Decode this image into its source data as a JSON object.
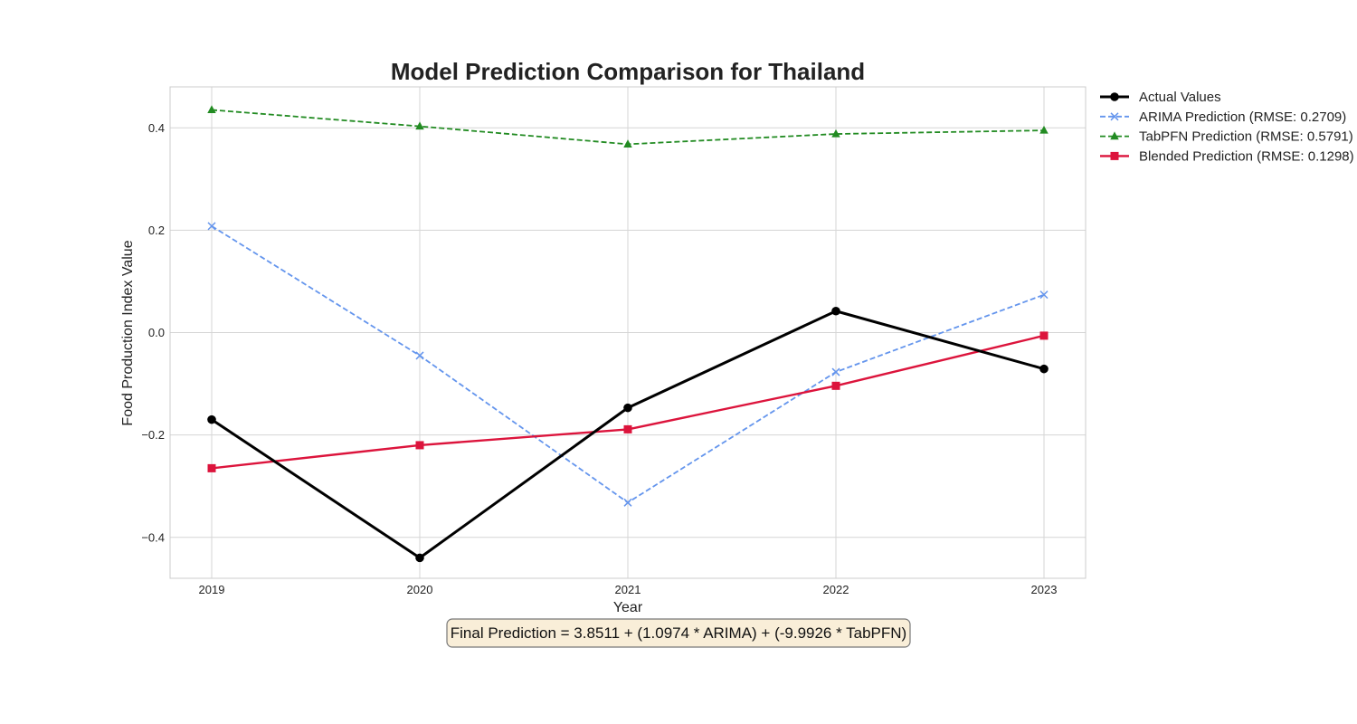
{
  "chart_data": {
    "type": "line",
    "title": "Model Prediction Comparison for Thailand",
    "xlabel": "Year",
    "ylabel": "Food Production Index Value",
    "x": [
      2019,
      2020,
      2021,
      2022,
      2023
    ],
    "x_tick_labels": [
      "2019",
      "2020",
      "2021",
      "2022",
      "2023"
    ],
    "xlim": [
      2018.8,
      2023.2
    ],
    "ylim": [
      -0.48,
      0.48
    ],
    "y_ticks": [
      -0.4,
      -0.2,
      0.0,
      0.2,
      0.4
    ],
    "y_tick_labels": [
      "−0.4",
      "−0.2",
      "0.0",
      "0.2",
      "0.4"
    ],
    "grid": true,
    "legend_position": "outside-top-right",
    "series": [
      {
        "name": "Actual Values",
        "values": [
          -0.17,
          -0.44,
          -0.147,
          0.042,
          -0.071
        ],
        "color": "#000000",
        "style": "solid",
        "marker": "circle"
      },
      {
        "name": "ARIMA Prediction (RMSE: 0.2709)",
        "values": [
          0.208,
          -0.045,
          -0.332,
          -0.077,
          0.074
        ],
        "color": "#6495ED",
        "style": "dashed",
        "marker": "x"
      },
      {
        "name": "TabPFN Prediction (RMSE: 0.5791)",
        "values": [
          0.435,
          0.403,
          0.368,
          0.388,
          0.395
        ],
        "color": "#228B22",
        "style": "dashed",
        "marker": "triangle"
      },
      {
        "name": "Blended Prediction (RMSE: 0.1298)",
        "values": [
          -0.265,
          -0.22,
          -0.189,
          -0.104,
          -0.006
        ],
        "color": "#DC143C",
        "style": "solid",
        "marker": "square"
      }
    ],
    "annotation": "Final Prediction = 3.8511 + (1.0974 * ARIMA) + (-9.9926 * TabPFN)"
  }
}
